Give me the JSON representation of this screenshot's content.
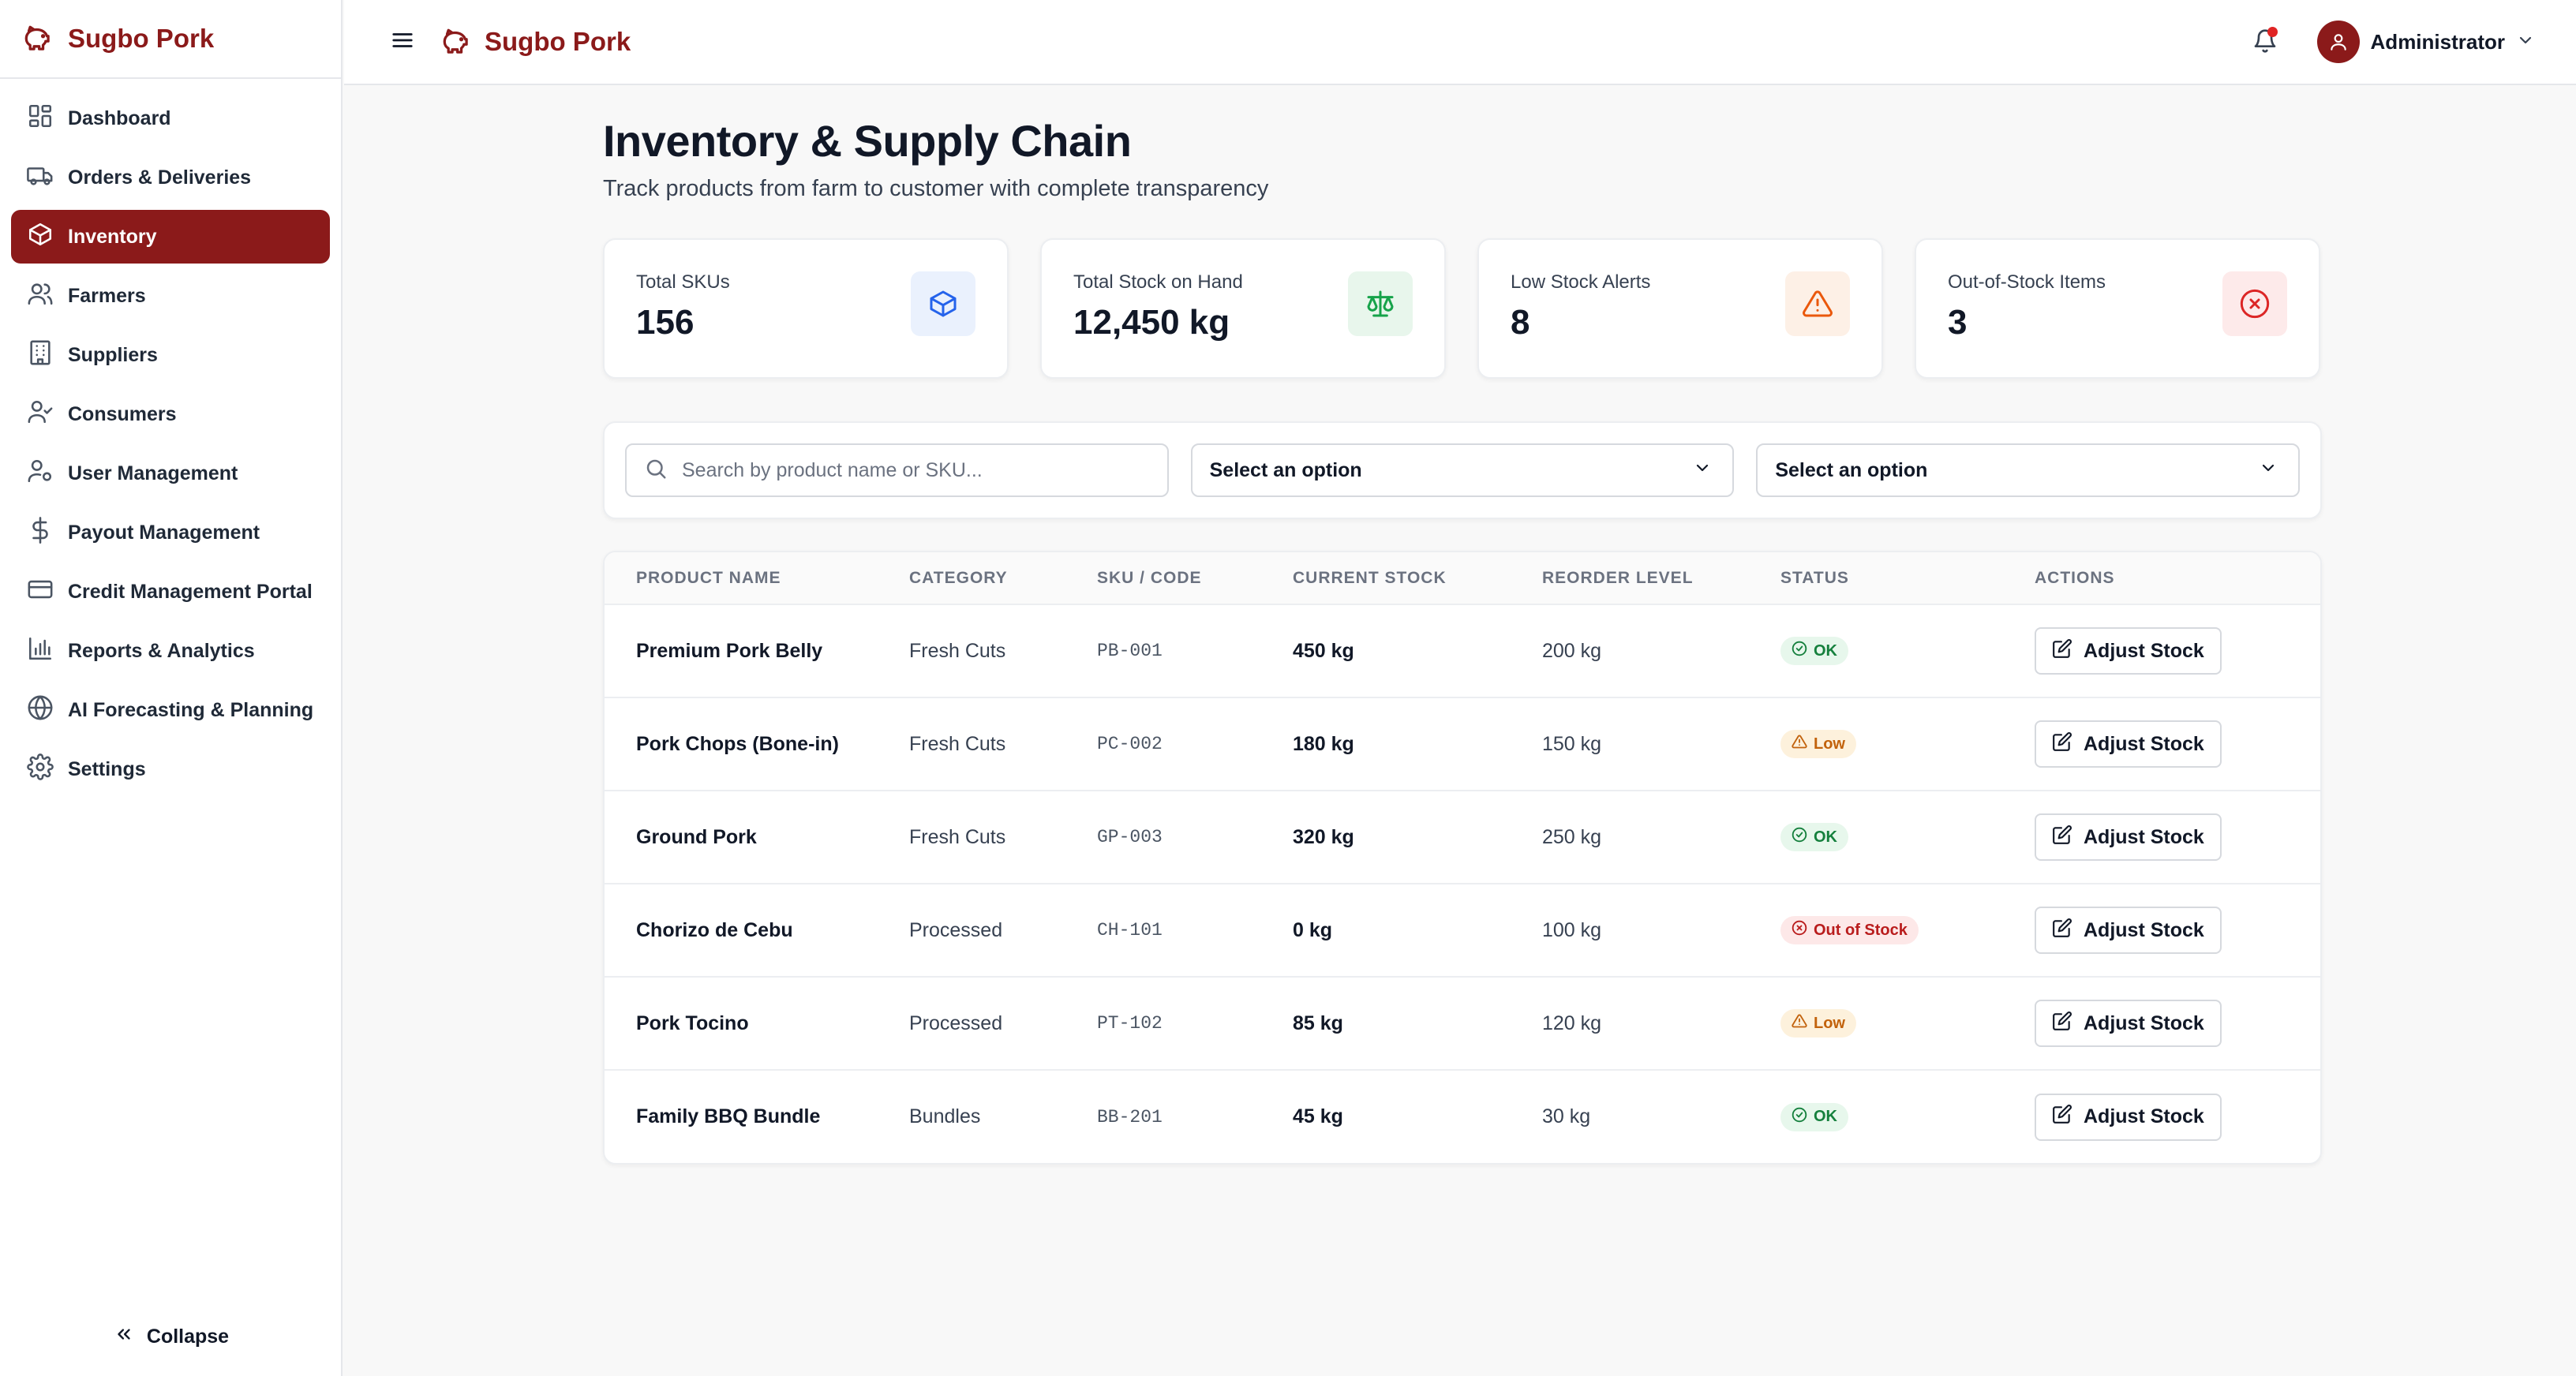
{
  "brand": {
    "name": "Sugbo Pork",
    "color": "#8b1a1a"
  },
  "sidebar": {
    "items": [
      {
        "label": "Dashboard",
        "icon": "dashboard-icon"
      },
      {
        "label": "Orders & Deliveries",
        "icon": "truck-icon"
      },
      {
        "label": "Inventory",
        "icon": "box-icon",
        "active": true
      },
      {
        "label": "Farmers",
        "icon": "users-icon"
      },
      {
        "label": "Suppliers",
        "icon": "building-icon"
      },
      {
        "label": "Consumers",
        "icon": "user-check-icon"
      },
      {
        "label": "User Management",
        "icon": "user-cog-icon"
      },
      {
        "label": "Payout Management",
        "icon": "dollar-icon"
      },
      {
        "label": "Credit Management Portal",
        "icon": "credit-card-icon"
      },
      {
        "label": "Reports & Analytics",
        "icon": "bar-chart-icon"
      },
      {
        "label": "AI Forecasting & Planning",
        "icon": "globe-icon"
      },
      {
        "label": "Settings",
        "icon": "gear-icon"
      }
    ],
    "collapse_label": "Collapse"
  },
  "topbar": {
    "user_name": "Administrator",
    "has_notification": true
  },
  "page": {
    "title": "Inventory & Supply Chain",
    "subtitle": "Track products from farm to customer with complete transparency"
  },
  "stats": [
    {
      "label": "Total SKUs",
      "value": "156",
      "icon": "box-icon",
      "color": "#2563eb",
      "bg": "#eaf1fd"
    },
    {
      "label": "Total Stock on Hand",
      "value": "12,450 kg",
      "icon": "scale-icon",
      "color": "#16a34a",
      "bg": "#e8f6ec"
    },
    {
      "label": "Low Stock Alerts",
      "value": "8",
      "icon": "alert-triangle-icon",
      "color": "#ea580c",
      "bg": "#fdf0e6"
    },
    {
      "label": "Out-of-Stock Items",
      "value": "3",
      "icon": "x-circle-icon",
      "color": "#dc2626",
      "bg": "#fdeaea"
    }
  ],
  "filters": {
    "search_placeholder": "Search by product name or SKU...",
    "select1": "Select an option",
    "select2": "Select an option"
  },
  "table": {
    "headers": [
      "PRODUCT NAME",
      "CATEGORY",
      "SKU / CODE",
      "CURRENT STOCK",
      "REORDER LEVEL",
      "STATUS",
      "ACTIONS"
    ],
    "action_label": "Adjust Stock",
    "rows": [
      {
        "name": "Premium Pork Belly",
        "category": "Fresh Cuts",
        "sku": "PB-001",
        "stock": "450 kg",
        "reorder": "200 kg",
        "status": "OK",
        "status_type": "ok"
      },
      {
        "name": "Pork Chops (Bone-in)",
        "category": "Fresh Cuts",
        "sku": "PC-002",
        "stock": "180 kg",
        "reorder": "150 kg",
        "status": "Low",
        "status_type": "low"
      },
      {
        "name": "Ground Pork",
        "category": "Fresh Cuts",
        "sku": "GP-003",
        "stock": "320 kg",
        "reorder": "250 kg",
        "status": "OK",
        "status_type": "ok"
      },
      {
        "name": "Chorizo de Cebu",
        "category": "Processed",
        "sku": "CH-101",
        "stock": "0 kg",
        "reorder": "100 kg",
        "status": "Out of Stock",
        "status_type": "out"
      },
      {
        "name": "Pork Tocino",
        "category": "Processed",
        "sku": "PT-102",
        "stock": "85 kg",
        "reorder": "120 kg",
        "status": "Low",
        "status_type": "low"
      },
      {
        "name": "Family BBQ Bundle",
        "category": "Bundles",
        "sku": "BB-201",
        "stock": "45 kg",
        "reorder": "30 kg",
        "status": "OK",
        "status_type": "ok"
      }
    ]
  }
}
